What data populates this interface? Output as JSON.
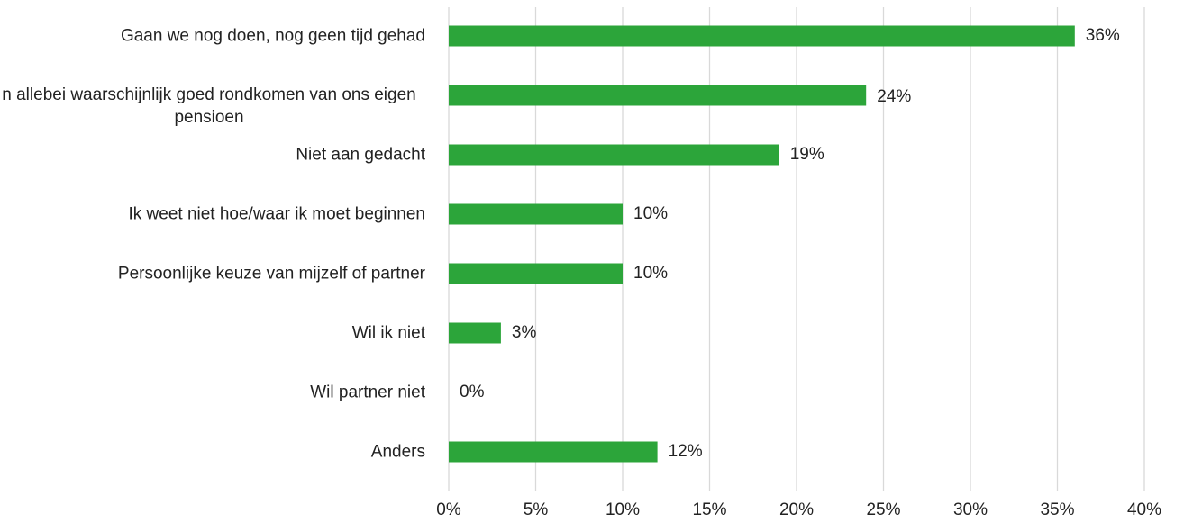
{
  "chart_data": {
    "type": "bar",
    "orientation": "horizontal",
    "categories": [
      "Gaan we nog doen, nog geen tijd gehad",
      "n allebei waarschijnlijk goed rondkomen van ons eigen pensioen",
      "Niet aan gedacht",
      "Ik weet niet hoe/waar ik moet beginnen",
      "Persoonlijke keuze van mijzelf of partner",
      "Wil ik niet",
      "Wil partner niet",
      "Anders"
    ],
    "values": [
      36,
      24,
      19,
      10,
      10,
      3,
      0,
      12
    ],
    "value_labels": [
      "36%",
      "24%",
      "19%",
      "10%",
      "10%",
      "3%",
      "0%",
      "12%"
    ],
    "color": "#2ca53a",
    "xlim": [
      0,
      40
    ],
    "xticks": [
      {
        "value": 0,
        "label": "0%"
      },
      {
        "value": 5,
        "label": "5%"
      },
      {
        "value": 10,
        "label": "10%"
      },
      {
        "value": 15,
        "label": "15%"
      },
      {
        "value": 20,
        "label": "20%"
      },
      {
        "value": 25,
        "label": "25%"
      },
      {
        "value": 30,
        "label": "30%"
      },
      {
        "value": 35,
        "label": "35%"
      },
      {
        "value": 40,
        "label": "40%"
      }
    ],
    "grid": true
  }
}
